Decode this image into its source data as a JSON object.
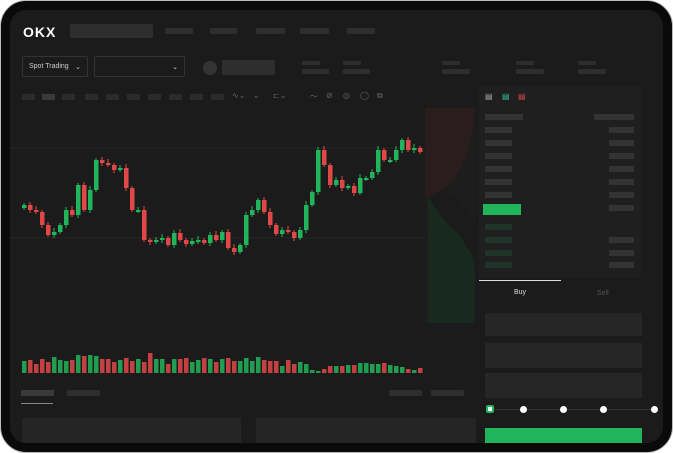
{
  "header": {
    "logo": "OKX"
  },
  "toolbar": {
    "market_dropdown": "Spot Trading",
    "chevron": "⌄",
    "icons": [
      "indicator-icon",
      "line-icon",
      "pen-icon",
      "ruler-icon",
      "settings-icon"
    ]
  },
  "orderbook": {
    "view_icons": [
      "both-sides-icon",
      "bids-icon",
      "asks-icon"
    ]
  },
  "trade": {
    "buy_tab": "Buy",
    "sell_tab": "Sell",
    "active_tab": "Buy",
    "slider_percent": 0
  },
  "colors": {
    "up": "#22b45a",
    "down": "#e04848",
    "background": "#1b1b1b"
  },
  "chart_data": {
    "type": "candlestick",
    "first_open": 92,
    "closes": [
      95,
      90,
      88,
      75,
      65,
      68,
      75,
      90,
      85,
      115,
      90,
      110,
      140,
      137,
      135,
      130,
      132,
      112,
      90,
      90,
      60,
      58,
      60,
      62,
      55,
      67,
      60,
      56,
      59,
      60,
      57,
      65,
      60,
      68,
      52,
      48,
      55,
      85,
      90,
      100,
      88,
      75,
      66,
      70,
      68,
      62,
      70,
      95,
      108,
      150,
      135,
      115,
      120,
      112,
      114,
      107,
      122,
      122,
      128,
      150,
      140,
      140,
      150,
      160,
      150,
      152,
      148
    ],
    "volumes": [
      12,
      13,
      9,
      14,
      11,
      16,
      13,
      12,
      13,
      18,
      17,
      18,
      17,
      14,
      14,
      11,
      13,
      15,
      12,
      14,
      11,
      20,
      14,
      14,
      9,
      14,
      14,
      15,
      11,
      13,
      15,
      14,
      11,
      14,
      15,
      12,
      12,
      15,
      12,
      16,
      13,
      12,
      12,
      7,
      13,
      9,
      11,
      9,
      3,
      2,
      4,
      7,
      7,
      7,
      8,
      8,
      10,
      10,
      9,
      9,
      10,
      8,
      7,
      6,
      4,
      3,
      5
    ]
  }
}
